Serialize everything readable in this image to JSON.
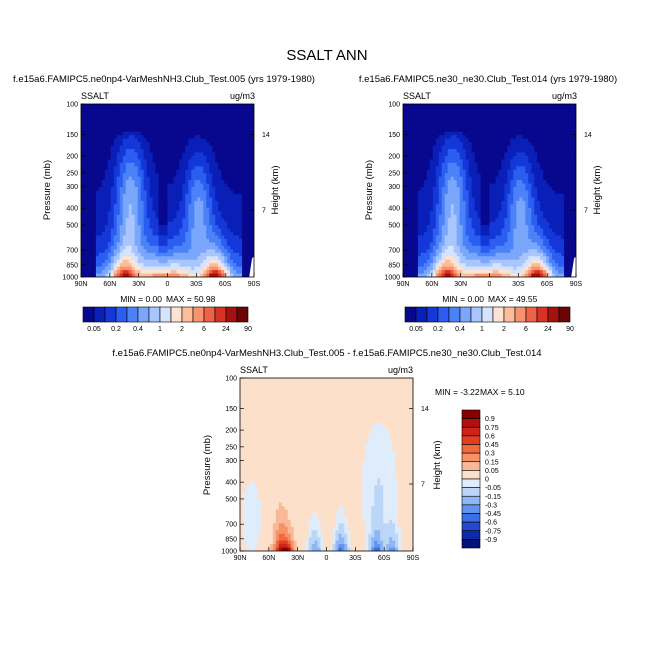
{
  "title": "SSALT ANN",
  "chart_data": [
    {
      "type": "heatmap",
      "title": "f.e15a6.FAMIPC5.ne0np4-VarMeshNH3.Club_Test.005 (yrs 1979-1980)",
      "variable": "SSALT",
      "units": "ug/m3",
      "xlabel": "",
      "ylabel": "Pressure (mb)",
      "ylabel_right": "Height (km)",
      "x_ticks": [
        "90N",
        "60N",
        "30N",
        "0",
        "30S",
        "60S",
        "90S"
      ],
      "y_ticks": [
        "100",
        "150",
        "200",
        "250",
        "300",
        "400",
        "500",
        "700",
        "850",
        "1000"
      ],
      "y_right_ticks": [
        "14",
        "7"
      ],
      "ylim": [
        1000,
        100
      ],
      "y_scale": "log",
      "min_label": "MIN =  0.00",
      "max_label": "MAX =  50.98",
      "colorbar_orientation": "horizontal",
      "levels": [
        "0.05",
        "0.2",
        "0.4",
        "1",
        "2",
        "6",
        "24",
        "90"
      ],
      "colors": [
        "#08088f",
        "#0a1fb8",
        "#1438d8",
        "#2b5ef0",
        "#4c82f8",
        "#7aa6fb",
        "#a8c6fc",
        "#d4e4fd",
        "#ffe3d2",
        "#fcbd9c",
        "#f7936d",
        "#ef6245",
        "#d83322",
        "#a51010",
        "#6b0505"
      ]
    },
    {
      "type": "heatmap",
      "title": "f.e15a6.FAMIPC5.ne30_ne30.Club_Test.014 (yrs 1979-1980)",
      "variable": "SSALT",
      "units": "ug/m3",
      "xlabel": "",
      "ylabel": "Pressure (mb)",
      "ylabel_right": "Height (km)",
      "x_ticks": [
        "90N",
        "60N",
        "30N",
        "0",
        "30S",
        "60S",
        "90S"
      ],
      "y_ticks": [
        "100",
        "150",
        "200",
        "250",
        "300",
        "400",
        "500",
        "700",
        "850",
        "1000"
      ],
      "y_right_ticks": [
        "14",
        "7"
      ],
      "ylim": [
        1000,
        100
      ],
      "y_scale": "log",
      "min_label": "MIN =  0.00",
      "max_label": "MAX =  49.55",
      "colorbar_orientation": "horizontal",
      "levels": [
        "0.05",
        "0.2",
        "0.4",
        "1",
        "2",
        "6",
        "24",
        "90"
      ],
      "colors": [
        "#08088f",
        "#0a1fb8",
        "#1438d8",
        "#2b5ef0",
        "#4c82f8",
        "#7aa6fb",
        "#a8c6fc",
        "#d4e4fd",
        "#ffe3d2",
        "#fcbd9c",
        "#f7936d",
        "#ef6245",
        "#d83322",
        "#a51010",
        "#6b0505"
      ]
    },
    {
      "type": "heatmap",
      "title": "f.e15a6.FAMIPC5.ne0np4-VarMeshNH3.Club_Test.005 - f.e15a6.FAMIPC5.ne30_ne30.Club_Test.014",
      "variable": "SSALT",
      "units": "ug/m3",
      "xlabel": "",
      "ylabel": "Pressure (mb)",
      "ylabel_right": "Height (km)",
      "x_ticks": [
        "90N",
        "60N",
        "30N",
        "0",
        "30S",
        "60S",
        "90S"
      ],
      "y_ticks": [
        "100",
        "150",
        "200",
        "250",
        "300",
        "400",
        "500",
        "700",
        "850",
        "1000"
      ],
      "y_right_ticks": [
        "14",
        "7"
      ],
      "ylim": [
        1000,
        100
      ],
      "y_scale": "log",
      "min_label": "MIN = -3.22",
      "max_label": "MAX =  5.10",
      "colorbar_orientation": "vertical",
      "levels": [
        "0.9",
        "0.75",
        "0.6",
        "0.45",
        "0.3",
        "0.15",
        "0.05",
        "0",
        "-0.05",
        "-0.15",
        "-0.3",
        "-0.45",
        "-0.6",
        "-0.75",
        "-0.9"
      ],
      "colors": [
        "#8a0000",
        "#b01010",
        "#cc2418",
        "#e0401f",
        "#ef6a3c",
        "#f6916a",
        "#fab996",
        "#fde0ca",
        "#deecfb",
        "#bcd6f8",
        "#8eb6f4",
        "#6194ee",
        "#3d6fe4",
        "#2349cf",
        "#0e2aa8",
        "#04137a"
      ]
    }
  ]
}
